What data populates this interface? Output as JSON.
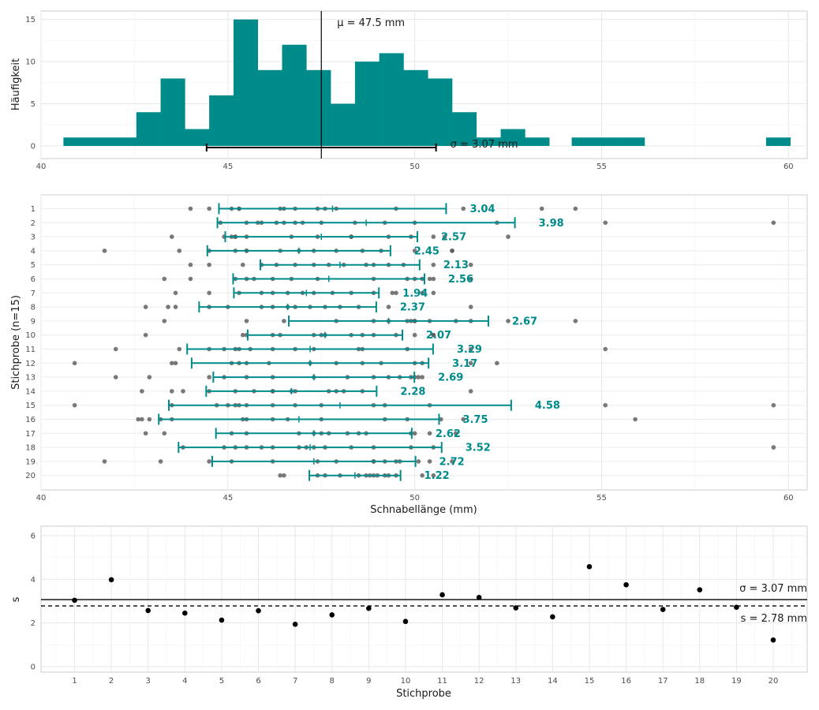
{
  "chart_data": [
    {
      "type": "histogram",
      "xlim": [
        40,
        60
      ],
      "ylim": [
        0,
        15
      ],
      "x_ticks": [
        40,
        45,
        50,
        55,
        60
      ],
      "y_ticks": [
        0,
        5,
        10,
        15
      ],
      "ylabel": "Häufigkeit",
      "xlabel": "",
      "bar_color": "#008b8b",
      "bins": [
        {
          "x0": 40.6,
          "x1": 41.25,
          "count": 1
        },
        {
          "x0": 41.25,
          "x1": 41.9,
          "count": 1
        },
        {
          "x0": 41.9,
          "x1": 42.55,
          "count": 1
        },
        {
          "x0": 42.55,
          "x1": 43.2,
          "count": 4
        },
        {
          "x0": 43.2,
          "x1": 43.85,
          "count": 8
        },
        {
          "x0": 43.85,
          "x1": 44.5,
          "count": 2
        },
        {
          "x0": 44.5,
          "x1": 45.15,
          "count": 6
        },
        {
          "x0": 45.15,
          "x1": 45.8,
          "count": 15
        },
        {
          "x0": 45.8,
          "x1": 46.45,
          "count": 9
        },
        {
          "x0": 46.45,
          "x1": 47.1,
          "count": 12
        },
        {
          "x0": 47.1,
          "x1": 47.75,
          "count": 9
        },
        {
          "x0": 47.75,
          "x1": 48.4,
          "count": 5
        },
        {
          "x0": 48.4,
          "x1": 49.05,
          "count": 10
        },
        {
          "x0": 49.05,
          "x1": 49.7,
          "count": 11
        },
        {
          "x0": 49.7,
          "x1": 50.35,
          "count": 9
        },
        {
          "x0": 50.35,
          "x1": 51.0,
          "count": 8
        },
        {
          "x0": 51.0,
          "x1": 51.65,
          "count": 4
        },
        {
          "x0": 51.65,
          "x1": 52.3,
          "count": 1
        },
        {
          "x0": 52.3,
          "x1": 52.95,
          "count": 2
        },
        {
          "x0": 52.95,
          "x1": 53.6,
          "count": 1
        },
        {
          "x0": 54.2,
          "x1": 54.85,
          "count": 1
        },
        {
          "x0": 54.85,
          "x1": 55.5,
          "count": 1
        },
        {
          "x0": 55.5,
          "x1": 56.15,
          "count": 1
        },
        {
          "x0": 59.4,
          "x1": 60.05,
          "count": 1
        }
      ],
      "mean": 47.5,
      "sigma": 3.07,
      "mean_label": "μ = 47.5 mm",
      "sigma_label": "σ = 3.07 mm"
    },
    {
      "type": "strip_errorbar",
      "xlim": [
        40,
        60
      ],
      "x_ticks": [
        40,
        45,
        50,
        55,
        60
      ],
      "xlabel": "Schnabellänge (mm)",
      "ylabel": "Stichprobe (n=15)",
      "point_color": "#595959",
      "bar_color": "#008b8b",
      "samples": [
        {
          "label": "1",
          "mean": 47.8,
          "sd": 3.04,
          "sd_label": "3.04",
          "points": [
            44.0,
            44.5,
            45.1,
            45.3,
            45.3,
            46.4,
            46.5,
            46.8,
            47.4,
            47.6,
            47.9,
            49.5,
            51.3,
            53.4,
            54.3
          ]
        },
        {
          "label": "2",
          "mean": 48.7,
          "sd": 3.98,
          "sd_label": "3.98",
          "points": [
            44.8,
            45.5,
            45.8,
            45.9,
            46.3,
            46.5,
            46.8,
            47.0,
            47.5,
            48.4,
            49.2,
            50.0,
            52.2,
            55.1,
            59.6
          ]
        },
        {
          "label": "3",
          "mean": 47.5,
          "sd": 2.57,
          "sd_label": "2.57",
          "points": [
            43.5,
            44.9,
            45.1,
            45.2,
            45.2,
            45.5,
            46.7,
            47.4,
            48.3,
            48.3,
            49.3,
            49.9,
            50.5,
            50.8,
            52.5
          ]
        },
        {
          "label": "4",
          "mean": 46.9,
          "sd": 2.45,
          "sd_label": "2.45",
          "points": [
            41.7,
            43.7,
            44.5,
            45.2,
            45.5,
            45.5,
            46.4,
            46.9,
            47.3,
            47.9,
            48.6,
            49.1,
            50.0,
            51.0,
            51.0
          ]
        },
        {
          "label": "5",
          "mean": 48.0,
          "sd": 2.13,
          "sd_label": "2.13",
          "points": [
            44.0,
            44.5,
            45.4,
            45.9,
            46.3,
            46.8,
            47.3,
            47.7,
            48.1,
            48.7,
            48.9,
            49.3,
            49.7,
            50.5,
            51.5
          ]
        },
        {
          "label": "6",
          "mean": 47.7,
          "sd": 2.56,
          "sd_label": "2.56",
          "points": [
            43.3,
            44.0,
            45.2,
            45.5,
            45.7,
            46.2,
            46.7,
            47.4,
            48.9,
            49.8,
            50.0,
            50.2,
            50.4,
            50.5,
            51.5
          ]
        },
        {
          "label": "7",
          "mean": 47.1,
          "sd": 1.94,
          "sd_label": "1.94",
          "points": [
            43.6,
            44.5,
            45.3,
            45.9,
            46.2,
            46.6,
            47.0,
            47.3,
            47.8,
            48.3,
            48.9,
            49.4,
            49.5,
            50.2,
            50.5
          ]
        },
        {
          "label": "8",
          "mean": 46.6,
          "sd": 2.37,
          "sd_label": "2.37",
          "points": [
            42.8,
            43.4,
            43.6,
            44.5,
            45.0,
            45.9,
            46.2,
            46.6,
            46.8,
            47.2,
            47.6,
            48.0,
            48.5,
            49.3,
            51.5
          ]
        },
        {
          "label": "9",
          "mean": 49.3,
          "sd": 2.67,
          "sd_label": "2.67",
          "points": [
            43.3,
            45.5,
            46.5,
            47.9,
            48.9,
            49.3,
            49.8,
            49.9,
            50.0,
            50.0,
            50.4,
            51.1,
            51.5,
            52.5,
            54.3
          ]
        },
        {
          "label": "10",
          "mean": 47.6,
          "sd": 2.07,
          "sd_label": "2.07",
          "points": [
            42.8,
            45.4,
            45.5,
            46.2,
            46.4,
            47.3,
            47.5,
            47.6,
            48.3,
            48.6,
            48.9,
            49.5,
            50.0,
            50.5,
            50.5
          ]
        },
        {
          "label": "11",
          "mean": 47.2,
          "sd": 3.29,
          "sd_label": "3.29",
          "points": [
            42.0,
            43.7,
            44.5,
            44.9,
            45.2,
            45.3,
            45.6,
            46.2,
            46.8,
            47.3,
            48.5,
            48.6,
            49.8,
            51.5,
            55.1
          ]
        },
        {
          "label": "12",
          "mean": 47.2,
          "sd": 3.17,
          "sd_label": "3.17",
          "points": [
            40.9,
            43.5,
            43.6,
            45.1,
            45.3,
            45.5,
            46.1,
            47.2,
            47.9,
            48.6,
            49.1,
            50.0,
            50.2,
            51.5,
            52.2
          ]
        },
        {
          "label": "13",
          "mean": 47.3,
          "sd": 2.69,
          "sd_label": "2.69",
          "points": [
            42.0,
            42.9,
            44.5,
            44.9,
            45.5,
            46.2,
            47.3,
            48.2,
            48.9,
            49.3,
            49.6,
            49.9,
            50.0,
            50.1,
            50.2
          ]
        },
        {
          "label": "14",
          "mean": 46.7,
          "sd": 2.28,
          "sd_label": "2.28",
          "points": [
            42.7,
            43.5,
            43.8,
            44.5,
            45.2,
            45.7,
            46.2,
            46.2,
            46.7,
            46.8,
            47.7,
            47.9,
            48.1,
            48.6,
            51.5
          ]
        },
        {
          "label": "15",
          "mean": 48.0,
          "sd": 4.58,
          "sd_label": "4.58",
          "points": [
            40.9,
            43.5,
            44.7,
            45.0,
            45.2,
            45.3,
            45.5,
            46.2,
            46.8,
            47.5,
            48.9,
            49.2,
            50.4,
            55.1,
            59.6
          ]
        },
        {
          "label": "16",
          "mean": 46.9,
          "sd": 3.75,
          "sd_label": "3.75",
          "points": [
            42.6,
            42.7,
            42.9,
            43.2,
            43.5,
            45.4,
            45.5,
            46.2,
            46.6,
            47.5,
            49.2,
            49.8,
            50.7,
            51.3,
            55.9
          ]
        },
        {
          "label": "17",
          "mean": 47.3,
          "sd": 2.62,
          "sd_label": "2.62",
          "points": [
            42.8,
            43.3,
            45.1,
            45.5,
            46.9,
            47.3,
            47.5,
            47.7,
            48.2,
            48.5,
            48.7,
            49.9,
            50.0,
            50.4,
            51.1
          ]
        },
        {
          "label": "18",
          "mean": 47.2,
          "sd": 3.52,
          "sd_label": "3.52",
          "points": [
            43.8,
            44.9,
            45.2,
            45.5,
            45.9,
            46.2,
            46.9,
            47.1,
            47.3,
            47.6,
            48.3,
            48.9,
            49.9,
            50.5,
            59.6
          ]
        },
        {
          "label": "19",
          "mean": 47.3,
          "sd": 2.72,
          "sd_label": "2.72",
          "points": [
            41.7,
            43.2,
            44.5,
            45.1,
            46.2,
            47.4,
            47.9,
            48.9,
            48.9,
            49.2,
            49.5,
            49.6,
            50.1,
            50.4,
            51.0
          ]
        },
        {
          "label": "20",
          "mean": 48.4,
          "sd": 1.22,
          "sd_label": "1.22",
          "points": [
            46.4,
            46.5,
            47.4,
            47.6,
            48.0,
            48.5,
            48.7,
            48.8,
            48.9,
            49.0,
            49.2,
            49.3,
            49.5,
            50.2,
            50.5
          ]
        }
      ]
    },
    {
      "type": "scatter",
      "xlabel": "Stichprobe",
      "ylabel": "s",
      "xlim": [
        0.5,
        20.9
      ],
      "ylim": [
        -0.3,
        6.5
      ],
      "x_ticks": [
        1,
        2,
        3,
        4,
        5,
        6,
        7,
        8,
        9,
        10,
        11,
        12,
        13,
        14,
        15,
        16,
        17,
        18,
        19,
        20
      ],
      "y_ticks": [
        0,
        2,
        4,
        6
      ],
      "x": [
        1,
        2,
        3,
        4,
        5,
        6,
        7,
        8,
        9,
        10,
        11,
        12,
        13,
        14,
        15,
        16,
        17,
        18,
        19,
        20
      ],
      "y": [
        3.04,
        3.98,
        2.57,
        2.45,
        2.13,
        2.56,
        1.94,
        2.37,
        2.67,
        2.07,
        3.29,
        3.17,
        2.69,
        2.28,
        4.58,
        3.75,
        2.62,
        3.52,
        2.72,
        1.22
      ],
      "sigma": 3.07,
      "mean_s": 2.78,
      "sigma_label": "σ = 3.07 mm",
      "mean_s_label": "s = 2.78 mm"
    }
  ]
}
